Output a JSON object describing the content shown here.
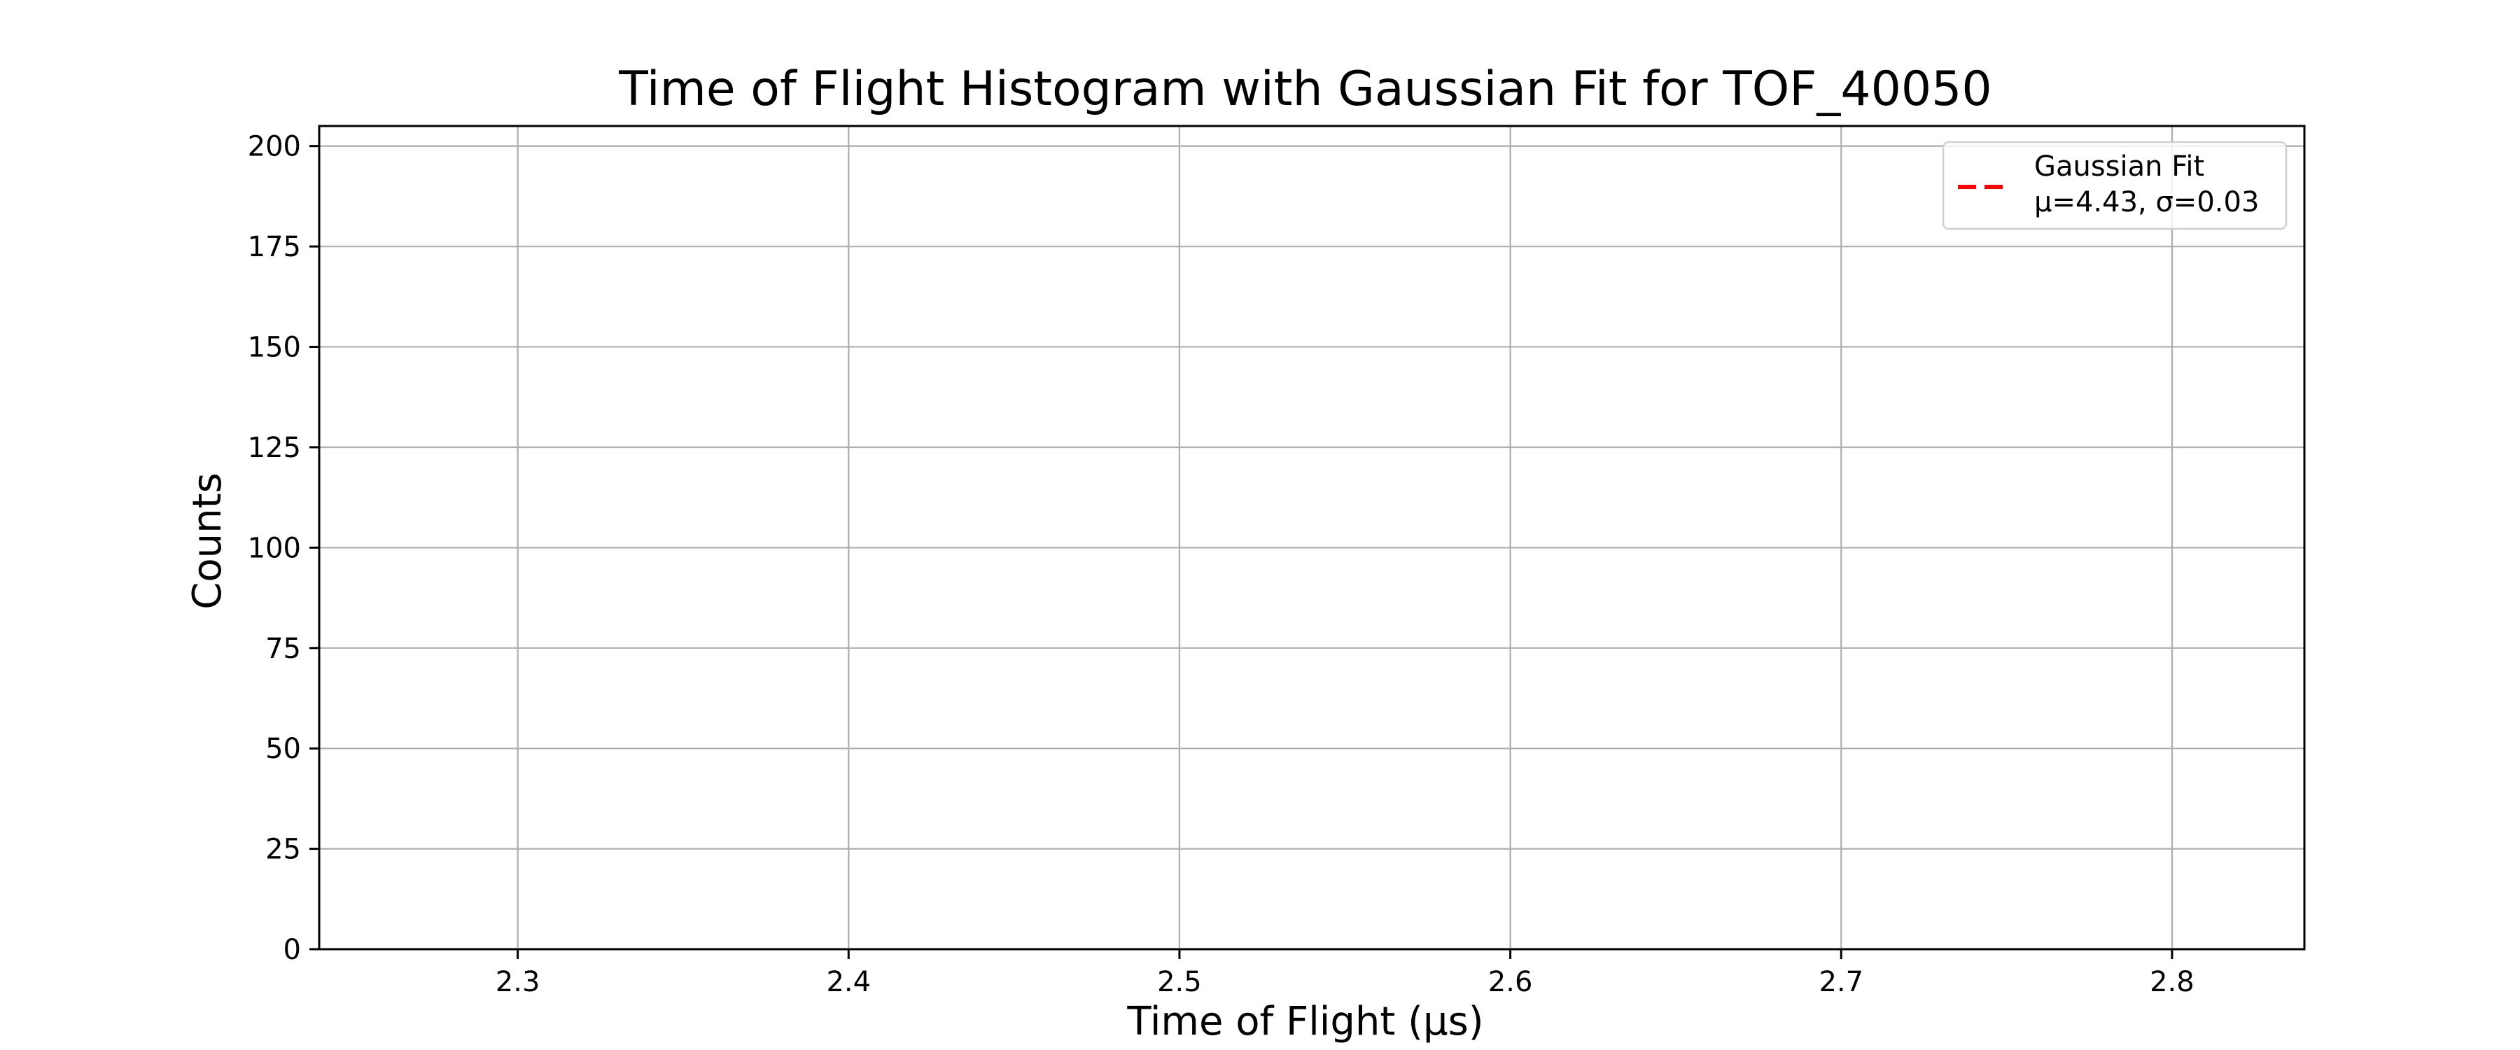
{
  "chart_data": {
    "type": "histogram",
    "title": "Time of Flight Histogram with Gaussian Fit for TOF_40050",
    "xlabel": "Time of Flight (μs)",
    "ylabel": "Counts",
    "xlim": [
      2.24,
      2.84
    ],
    "ylim": [
      0,
      205
    ],
    "x_ticks": [
      2.3,
      2.4,
      2.5,
      2.6,
      2.7,
      2.8
    ],
    "x_tick_labels": [
      "2.3",
      "2.4",
      "2.5",
      "2.6",
      "2.7",
      "2.8"
    ],
    "y_ticks": [
      0,
      25,
      50,
      75,
      100,
      125,
      150,
      175,
      200
    ],
    "y_tick_labels": [
      "0",
      "25",
      "50",
      "75",
      "100",
      "125",
      "150",
      "175",
      "200"
    ],
    "grid": true,
    "legend_position": "top-right",
    "series": [
      {
        "name": "Gaussian Fit",
        "style": "dashed",
        "color": "#ff0000",
        "mu": 4.43,
        "sigma": 0.03,
        "points": []
      }
    ],
    "legend": {
      "line1": "Gaussian Fit",
      "line2": "μ=4.43, σ=0.03"
    }
  }
}
